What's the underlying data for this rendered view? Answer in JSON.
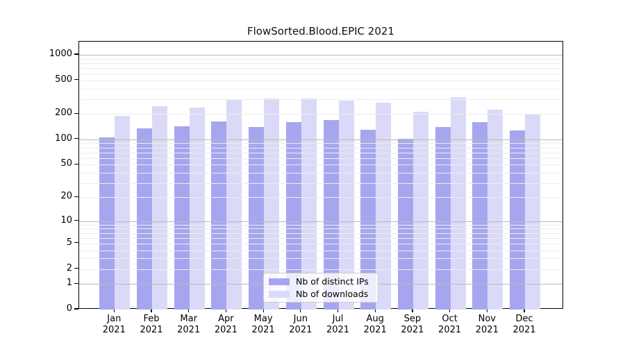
{
  "title": "FlowSorted.Blood.EPIC 2021",
  "colors": {
    "bar_distinct_ips": "#a6a6f0",
    "bar_downloads": "#dadaf8",
    "grid_major": "#b9b9b9",
    "grid_minor": "#ededed",
    "spine": "#000000",
    "legend_border": "#cccccc",
    "legend_background": "rgba(255,255,255,0.8)",
    "text": "#000000"
  },
  "legend": {
    "items": [
      {
        "label": "Nb of distinct IPs",
        "color": "#a6a6f0"
      },
      {
        "label": "Nb of downloads",
        "color": "#dadaf8"
      }
    ]
  },
  "chart_data": {
    "type": "bar",
    "title": "FlowSorted.Blood.EPIC 2021",
    "categories": [
      "Jan 2021",
      "Feb 2021",
      "Mar 2021",
      "Apr 2021",
      "May 2021",
      "Jun 2021",
      "Jul 2021",
      "Aug 2021",
      "Sep 2021",
      "Oct 2021",
      "Nov 2021",
      "Dec 2021"
    ],
    "series": [
      {
        "name": "Nb of distinct IPs",
        "color": "#a6a6f0",
        "values": [
          105,
          135,
          143,
          164,
          140,
          160,
          170,
          130,
          101,
          141,
          160,
          128
        ]
      },
      {
        "name": "Nb of downloads",
        "color": "#dadaf8",
        "values": [
          190,
          250,
          240,
          293,
          307,
          307,
          290,
          272,
          213,
          316,
          227,
          197
        ]
      }
    ],
    "xlabel": "",
    "ylabel": "",
    "yscale": "log1p",
    "yticks": [
      0,
      1,
      2,
      5,
      10,
      20,
      50,
      100,
      200,
      500,
      1000
    ],
    "ylim": [
      0,
      1430
    ],
    "grid": "both, drawn over bars",
    "legend_position": "lower center"
  }
}
